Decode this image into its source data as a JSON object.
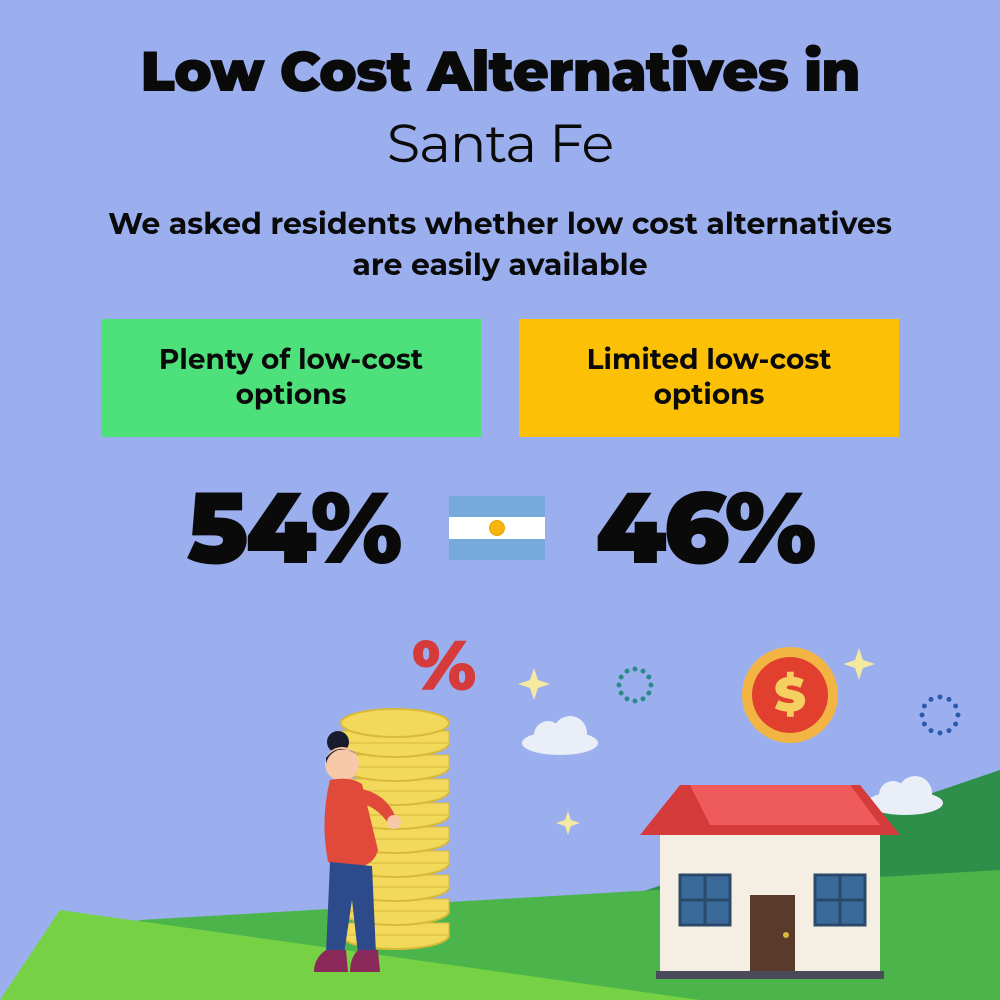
{
  "type": "infographic",
  "background_color": "#9bafef",
  "title": {
    "line1": "Low Cost Alternatives in",
    "line1_fontsize": 56,
    "line1_weight": 900,
    "line2": "Santa Fe",
    "line2_fontsize": 54,
    "line2_weight": 400,
    "color": "#0a0a0a"
  },
  "subtitle": {
    "text": "We asked residents whether low cost alternatives are easily available",
    "fontsize": 30,
    "weight": 700,
    "color": "#0a0a0a"
  },
  "options": [
    {
      "label": "Plenty of low-cost options",
      "bg_color": "#4ee07a",
      "text_color": "#0a0a0a",
      "fontsize": 28,
      "percent": "54%"
    },
    {
      "label": "Limited low-cost options",
      "bg_color": "#fcc007",
      "text_color": "#0a0a0a",
      "fontsize": 28,
      "percent": "46%"
    }
  ],
  "percent_style": {
    "fontsize": 100,
    "weight": 900,
    "color": "#0a0a0a"
  },
  "flag": {
    "country": "Argentina",
    "stripe_colors": [
      "#75aadb",
      "#ffffff",
      "#75aadb"
    ],
    "sun_color": "#f6b40e"
  },
  "illustration": {
    "ground_green_dark": "#2e8f4a",
    "ground_green_light": "#76d144",
    "ground_green_mid": "#4bb54b",
    "coin_fill": "#f2d95c",
    "coin_stroke": "#d9b93a",
    "percent_color": "#d63b3b",
    "person_top": "#e14a3a",
    "person_pants": "#2d4a8a",
    "person_skin": "#f8c9a8",
    "person_hair": "#1a1a2e",
    "person_boots": "#8b2a5a",
    "house_wall": "#f5efe3",
    "house_roof": "#d63b3b",
    "house_roof_top": "#ef5a5a",
    "house_door": "#5a3a2a",
    "house_window": "#3a6a9a",
    "house_window_frame": "#2a4a6a",
    "dollar_coin_outer": "#f2b544",
    "dollar_coin_inner": "#e1402e",
    "dollar_sign": "#f5d060",
    "cloud_color": "#e9eef7",
    "sparkle_color": "#f5e9a0",
    "dotted_circle_blue": "#2a5aaa",
    "dotted_circle_teal": "#2a8a8a"
  }
}
